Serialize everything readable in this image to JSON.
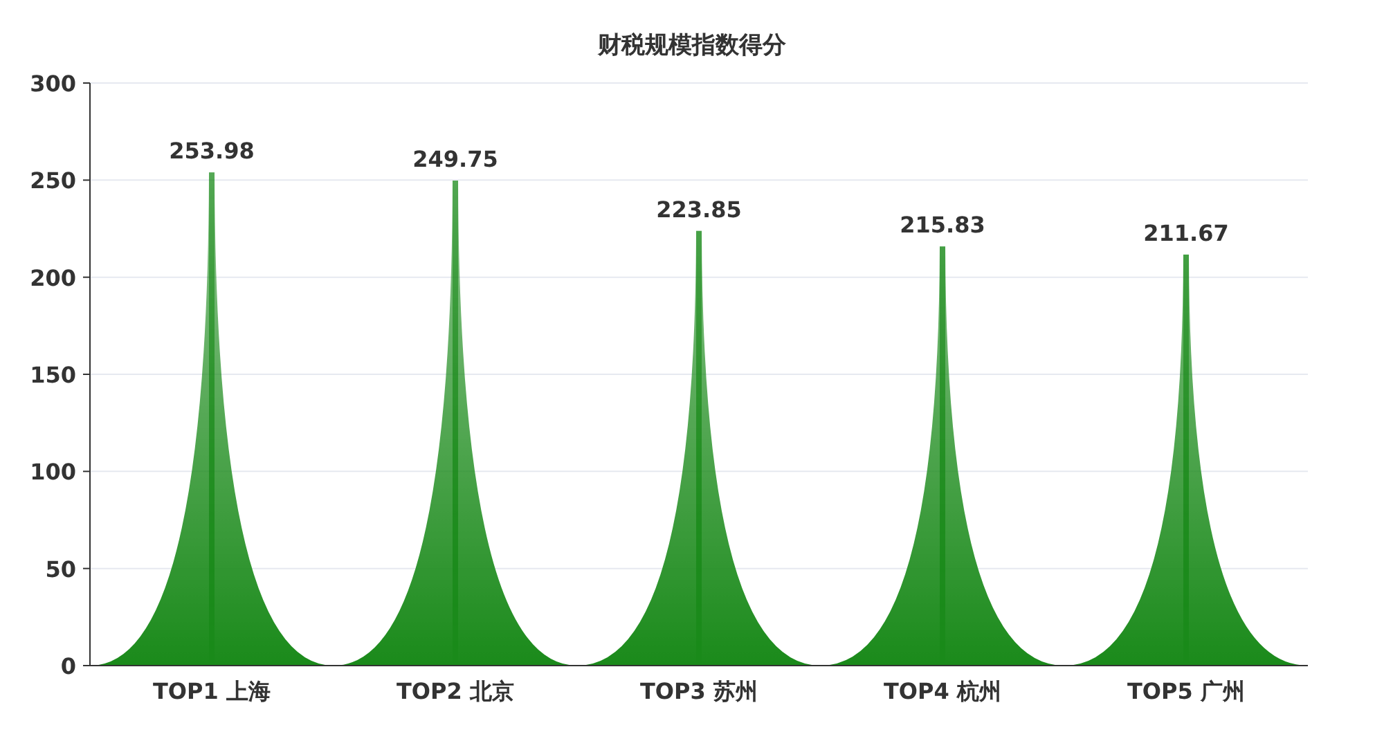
{
  "chart_data": {
    "type": "bar",
    "title": "财税规模指数得分",
    "categories": [
      "TOP1 上海",
      "TOP2 北京",
      "TOP3 苏州",
      "TOP4 杭州",
      "TOP5 广州"
    ],
    "values": [
      253.98,
      249.75,
      223.85,
      215.83,
      211.67
    ],
    "color": "#1a8a1a",
    "ylim": [
      0,
      300
    ],
    "yticks": [
      0,
      50,
      100,
      150,
      200,
      250,
      300
    ],
    "grid": "y",
    "data_labels": true
  }
}
